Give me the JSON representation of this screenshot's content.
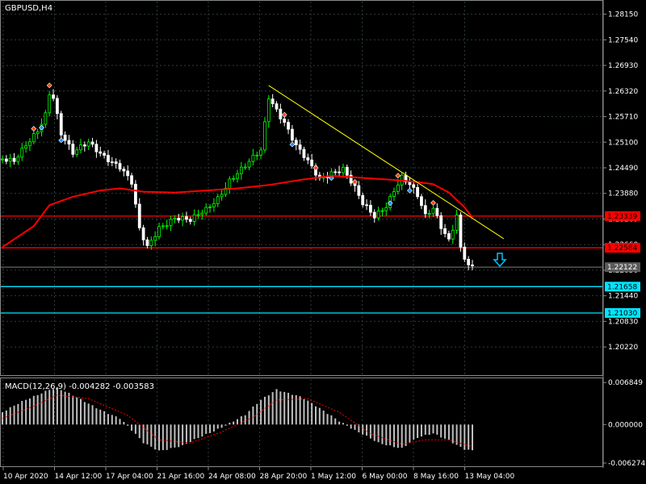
{
  "window": {
    "title": "GBPUSD,H4"
  },
  "main_chart": {
    "ylim": [
      1.1955,
      1.2845
    ],
    "y_ticks": [
      "1.28150",
      "1.27540",
      "1.26930",
      "1.26320",
      "1.25710",
      "1.25100",
      "1.24490",
      "1.23880",
      "1.23269",
      "1.22660",
      "1.22050",
      "1.21440",
      "1.20830",
      "1.20220"
    ],
    "levels": [
      {
        "value": 1.23339,
        "label": "1.23339",
        "color": "#ff0000"
      },
      {
        "value": 1.22584,
        "label": "1.22584",
        "color": "#ff0000"
      },
      {
        "value": 1.22122,
        "label": "1.22122",
        "color": "#5a5a5a"
      },
      {
        "value": 1.21658,
        "label": "1.21658",
        "color": "#00e5ff"
      },
      {
        "value": 1.2103,
        "label": "1.21030",
        "color": "#00e5ff"
      }
    ],
    "trendline": {
      "from": [
        68,
        1.2645
      ],
      "to": [
        128,
        1.228
      ],
      "color": "#ffff00"
    },
    "arrow": {
      "color": "#00bfff",
      "icon": "down-arrow-icon"
    },
    "colors": {
      "bull": "#00ff00",
      "bear": "#ffffff",
      "ma": "#ff0000",
      "grid": "#2f3a3a"
    }
  },
  "macd": {
    "label": "MACD(12,26,9) -0.004282 -0.003583",
    "ylim": [
      -0.0068,
      0.0074
    ],
    "y_ticks": [
      "0.006849",
      "0.000000",
      "-0.006274"
    ]
  },
  "x_axis": {
    "labels": [
      "10 Apr 2020",
      "14 Apr 12:00",
      "17 Apr 04:00",
      "21 Apr 16:00",
      "24 Apr 08:00",
      "28 Apr 20:00",
      "1 May 12:00",
      "6 May 00:00",
      "8 May 16:00",
      "13 May 04:00"
    ]
  },
  "chart_data": {
    "type": "candlestick",
    "title": "GBPUSD,H4",
    "price_keypoints": [
      [
        0,
        1.247
      ],
      [
        3,
        1.246
      ],
      [
        6,
        1.25
      ],
      [
        9,
        1.254
      ],
      [
        11,
        1.258
      ],
      [
        12,
        1.263
      ],
      [
        13,
        1.262
      ],
      [
        15,
        1.253
      ],
      [
        18,
        1.248
      ],
      [
        22,
        1.251
      ],
      [
        26,
        1.248
      ],
      [
        30,
        1.245
      ],
      [
        33,
        1.241
      ],
      [
        35,
        1.23
      ],
      [
        37,
        1.226
      ],
      [
        40,
        1.231
      ],
      [
        44,
        1.233
      ],
      [
        48,
        1.232
      ],
      [
        52,
        1.235
      ],
      [
        55,
        1.238
      ],
      [
        58,
        1.242
      ],
      [
        62,
        1.245
      ],
      [
        66,
        1.249
      ],
      [
        68,
        1.262
      ],
      [
        70,
        1.259
      ],
      [
        72,
        1.256
      ],
      [
        75,
        1.25
      ],
      [
        78,
        1.246
      ],
      [
        81,
        1.242
      ],
      [
        84,
        1.244
      ],
      [
        87,
        1.245
      ],
      [
        90,
        1.24
      ],
      [
        92,
        1.236
      ],
      [
        95,
        1.233
      ],
      [
        98,
        1.236
      ],
      [
        100,
        1.24
      ],
      [
        102,
        1.243
      ],
      [
        104,
        1.241
      ],
      [
        106,
        1.238
      ],
      [
        108,
        1.233
      ],
      [
        110,
        1.235
      ],
      [
        112,
        1.231
      ],
      [
        114,
        1.228
      ],
      [
        116,
        1.234
      ],
      [
        117,
        1.226
      ],
      [
        119,
        1.2215
      ],
      [
        120,
        1.2212
      ]
    ],
    "ma_keypoints": [
      [
        0,
        1.226
      ],
      [
        8,
        1.231
      ],
      [
        12,
        1.236
      ],
      [
        18,
        1.238
      ],
      [
        25,
        1.2395
      ],
      [
        30,
        1.24
      ],
      [
        36,
        1.2392
      ],
      [
        44,
        1.239
      ],
      [
        52,
        1.2395
      ],
      [
        60,
        1.24
      ],
      [
        68,
        1.2408
      ],
      [
        76,
        1.242
      ],
      [
        84,
        1.243
      ],
      [
        92,
        1.2425
      ],
      [
        100,
        1.242
      ],
      [
        106,
        1.2415
      ],
      [
        110,
        1.241
      ],
      [
        114,
        1.239
      ],
      [
        118,
        1.2355
      ],
      [
        120,
        1.233
      ]
    ],
    "macd_keypoints": [
      [
        0,
        0.002
      ],
      [
        6,
        0.004
      ],
      [
        12,
        0.0058
      ],
      [
        14,
        0.006
      ],
      [
        20,
        0.004
      ],
      [
        30,
        0.001
      ],
      [
        36,
        -0.003
      ],
      [
        40,
        -0.0042
      ],
      [
        46,
        -0.0035
      ],
      [
        54,
        -0.001
      ],
      [
        62,
        0.0015
      ],
      [
        66,
        0.004
      ],
      [
        70,
        0.0058
      ],
      [
        76,
        0.0045
      ],
      [
        84,
        0.0015
      ],
      [
        90,
        -0.001
      ],
      [
        96,
        -0.003
      ],
      [
        102,
        -0.0038
      ],
      [
        106,
        -0.0022
      ],
      [
        110,
        -0.0015
      ],
      [
        114,
        -0.0025
      ],
      [
        118,
        -0.004
      ],
      [
        120,
        -0.0043
      ]
    ],
    "signal_keypoints": [
      [
        0,
        0.001
      ],
      [
        8,
        0.003
      ],
      [
        14,
        0.0048
      ],
      [
        22,
        0.0042
      ],
      [
        32,
        0.0015
      ],
      [
        40,
        -0.0025
      ],
      [
        48,
        -0.003
      ],
      [
        56,
        -0.0012
      ],
      [
        64,
        0.0012
      ],
      [
        70,
        0.004
      ],
      [
        78,
        0.0042
      ],
      [
        86,
        0.002
      ],
      [
        94,
        -0.0015
      ],
      [
        102,
        -0.0032
      ],
      [
        108,
        -0.0025
      ],
      [
        114,
        -0.0025
      ],
      [
        120,
        -0.0036
      ]
    ]
  }
}
